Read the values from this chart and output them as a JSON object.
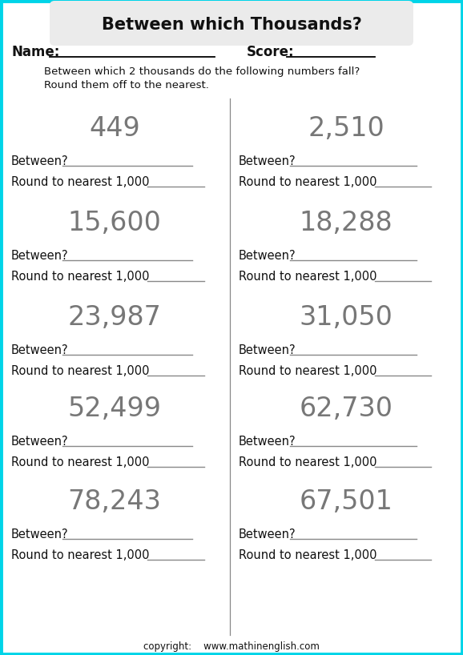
{
  "title": "Between which Thousands?",
  "bg_color": "#ffffff",
  "border_color": "#00d4e8",
  "title_box_color": "#ebebeb",
  "name_label": "Name:",
  "score_label": "Score:",
  "instruction_line1": "Between which 2 thousands do the following numbers fall?",
  "instruction_line2": "Round them off to the nearest.",
  "numbers": [
    "449",
    "2,510",
    "15,600",
    "18,288",
    "23,987",
    "31,050",
    "52,499",
    "62,730",
    "78,243",
    "67,501"
  ],
  "between_label": "Between?",
  "round_label": "Round to nearest 1,000",
  "copyright": "copyright:    www.mathinenglish.com",
  "text_color": "#111111",
  "line_color": "#888888",
  "number_color": "#777777",
  "figw": 5.78,
  "figh": 8.18,
  "dpi": 100
}
